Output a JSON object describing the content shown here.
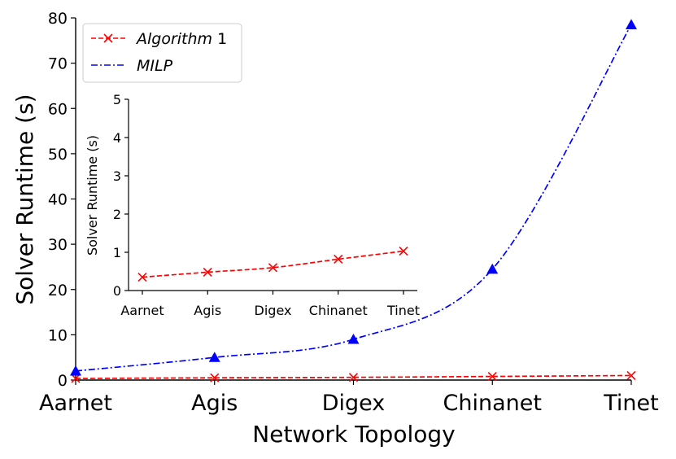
{
  "chart_data": [
    {
      "type": "line",
      "role": "main",
      "categories": [
        "Aarnet",
        "Agis",
        "Digex",
        "Chinanet",
        "Tinet"
      ],
      "xlabel": "Network Topology",
      "ylabel": "Solver Runtime (s)",
      "ylim": [
        0,
        80
      ],
      "yticks": [
        0,
        10,
        20,
        30,
        40,
        50,
        60,
        70,
        80
      ],
      "grid": false,
      "legend": "top-left",
      "series": [
        {
          "name": "Algorithm 1",
          "name_italic": "Algorithm",
          "name_rest": " 1",
          "color": "#ff0000",
          "linestyle": "dashed",
          "marker": "x",
          "values": [
            0.35,
            0.5,
            0.6,
            0.8,
            1.0
          ]
        },
        {
          "name": "MILP",
          "color": "#0000ff",
          "linestyle": "dashdot",
          "marker": "triangle",
          "values": [
            2.0,
            5.0,
            9.0,
            24.5,
            78.5
          ]
        }
      ]
    },
    {
      "type": "line",
      "role": "inset",
      "categories": [
        "Aarnet",
        "Agis",
        "Digex",
        "Chinanet",
        "Tinet"
      ],
      "xlabel": "",
      "ylabel": "Solver Runtime (s)",
      "ylim": [
        0,
        5
      ],
      "yticks": [
        0,
        1,
        2,
        3,
        4,
        5
      ],
      "grid": false,
      "series": [
        {
          "name": "Algorithm 1",
          "color": "#ff0000",
          "linestyle": "dashed",
          "marker": "x",
          "values": [
            0.35,
            0.48,
            0.6,
            0.82,
            1.03
          ]
        }
      ]
    }
  ]
}
